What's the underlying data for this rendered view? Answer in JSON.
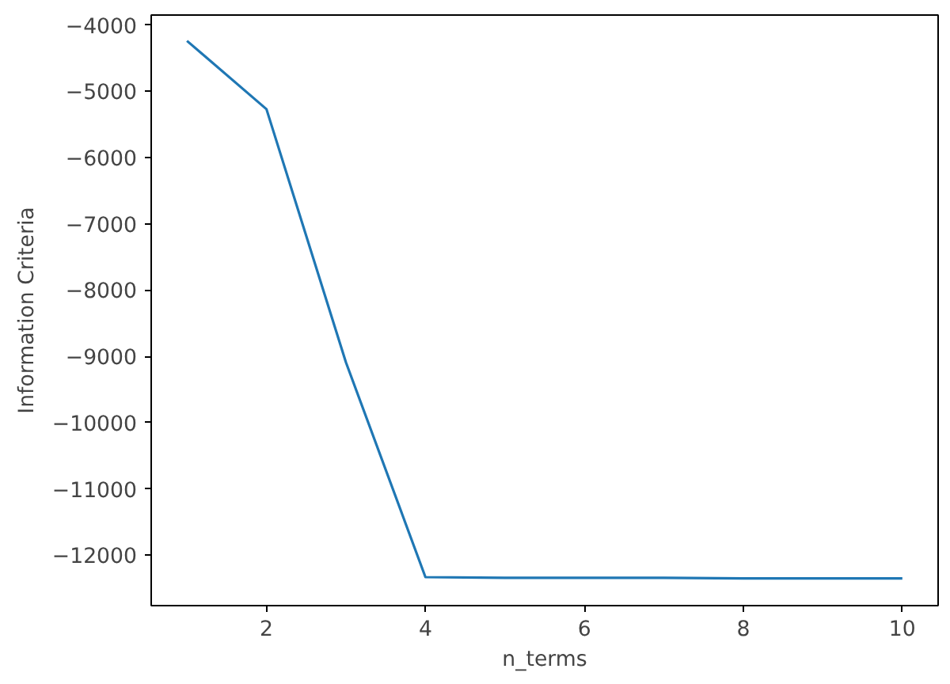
{
  "chart_data": {
    "type": "line",
    "xlabel": "n_terms",
    "ylabel": "Information Criteria",
    "x": [
      1,
      2,
      3,
      4,
      5,
      6,
      7,
      8,
      9,
      10
    ],
    "series": [
      {
        "color": "#1f77b4",
        "values": [
          -4240,
          -5270,
          -9090,
          -12330,
          -12340,
          -12340,
          -12340,
          -12350,
          -12350,
          -12350
        ]
      }
    ],
    "xlim": [
      0.55,
      10.45
    ],
    "xticks": [
      2,
      4,
      6,
      8,
      10
    ],
    "ylim": [
      -12760,
      -3850
    ],
    "yticks": [
      {
        "value": -4000,
        "label": "−4000"
      },
      {
        "value": -5000,
        "label": "−5000"
      },
      {
        "value": -6000,
        "label": "−6000"
      },
      {
        "value": -7000,
        "label": "−7000"
      },
      {
        "value": -8000,
        "label": "−8000"
      },
      {
        "value": -9000,
        "label": "−9000"
      },
      {
        "value": -10000,
        "label": "−10000"
      },
      {
        "value": -11000,
        "label": "−11000"
      },
      {
        "value": -12000,
        "label": "−12000"
      }
    ],
    "grid": false
  }
}
